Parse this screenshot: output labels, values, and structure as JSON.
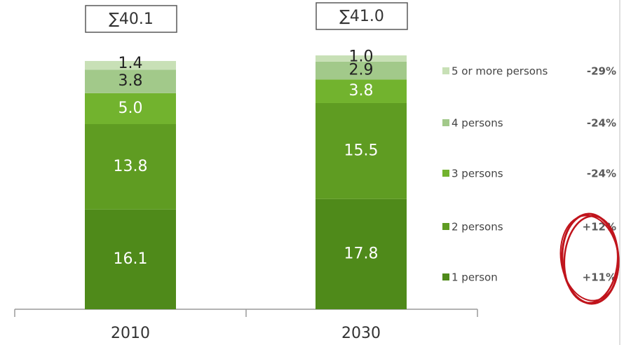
{
  "chart_data": {
    "type": "bar",
    "stacked": true,
    "categories": [
      "2010",
      "2030"
    ],
    "totals": [
      "∑40.1",
      "∑41.0"
    ],
    "series": [
      {
        "name": "1 person",
        "values": [
          16.1,
          17.8
        ],
        "labels": [
          "16.1",
          "17.8"
        ],
        "change": "+11%",
        "color": "#4f8a1a",
        "text_color": "#ffffff"
      },
      {
        "name": "2 persons",
        "values": [
          13.8,
          15.5
        ],
        "labels": [
          "13.8",
          "15.5"
        ],
        "change": "+12%",
        "color": "#5f9c22",
        "text_color": "#ffffff"
      },
      {
        "name": "3 persons",
        "values": [
          5.0,
          3.8
        ],
        "labels": [
          "5.0",
          "3.8"
        ],
        "change": "-24%",
        "color": "#72b32e",
        "text_color": "#ffffff"
      },
      {
        "name": "4 persons",
        "values": [
          3.8,
          2.9
        ],
        "labels": [
          "3.8",
          "2.9"
        ],
        "change": "-24%",
        "color": "#a2c98a",
        "text_color": "#222222"
      },
      {
        "name": "5 or more persons",
        "values": [
          1.4,
          1.0
        ],
        "labels": [
          "1.4",
          "1.0"
        ],
        "change": "-29%",
        "color": "#c8e0b6",
        "text_color": "#222222"
      }
    ],
    "highlighted_changes": [
      "+12%",
      "+11%"
    ],
    "highlight_color": "#c0141c",
    "ylim": [
      0,
      41.0
    ],
    "grid": false,
    "legend_position": "right"
  }
}
